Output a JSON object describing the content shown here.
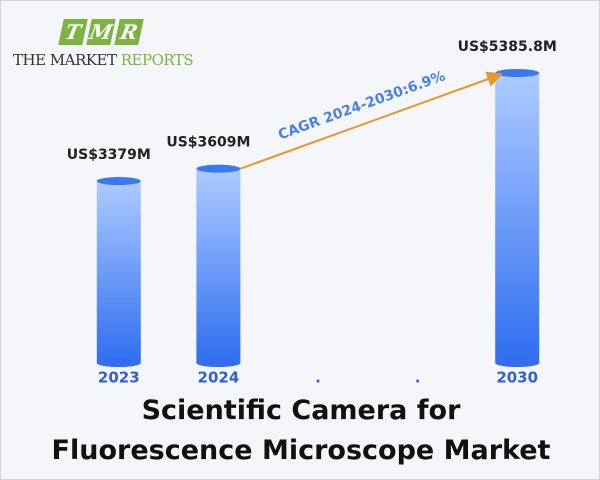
{
  "logo": {
    "letters": [
      "T",
      "M",
      "R"
    ],
    "name": "THE MARKET",
    "name_accent": "REPORTS"
  },
  "chart_data": {
    "type": "bar",
    "title": "Scientific Camera for Fluorescence Microscope Market",
    "categories": [
      "2023",
      "2024",
      ".",
      ".",
      "2030"
    ],
    "values": [
      3379,
      3609,
      null,
      null,
      5385.8
    ],
    "value_labels": [
      "US$3379M",
      "US$3609M",
      null,
      null,
      "US$5385.8M"
    ],
    "annotation": "CAGR 2024-2030:6.9%",
    "color": "#3a78f0"
  }
}
